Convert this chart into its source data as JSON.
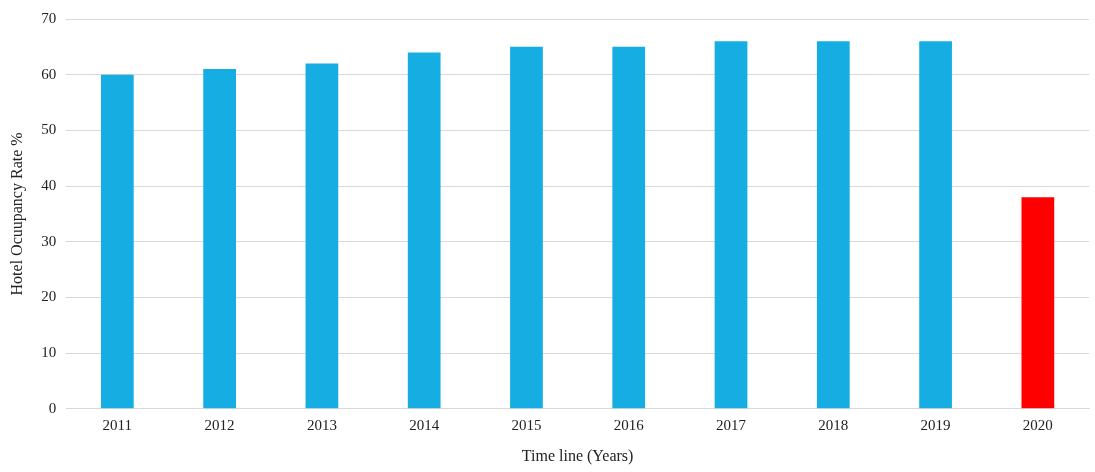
{
  "chart_data": {
    "type": "bar",
    "xlabel": "Time line (Years)",
    "ylabel": "Hotel Ocuupancy Rate %",
    "categories": [
      "2011",
      "2012",
      "2013",
      "2014",
      "2015",
      "2016",
      "2017",
      "2018",
      "2019",
      "2020"
    ],
    "values": [
      60,
      61,
      62,
      64,
      65,
      65,
      66,
      66,
      66,
      38
    ],
    "colors": [
      "#16ade2",
      "#16ade2",
      "#16ade2",
      "#16ade2",
      "#16ade2",
      "#16ade2",
      "#16ade2",
      "#16ade2",
      "#16ade2",
      "#ff0000"
    ],
    "ylim": [
      0,
      70
    ],
    "yticks": [
      0,
      10,
      20,
      30,
      40,
      50,
      60,
      70
    ],
    "grid": "y",
    "legend": false
  }
}
